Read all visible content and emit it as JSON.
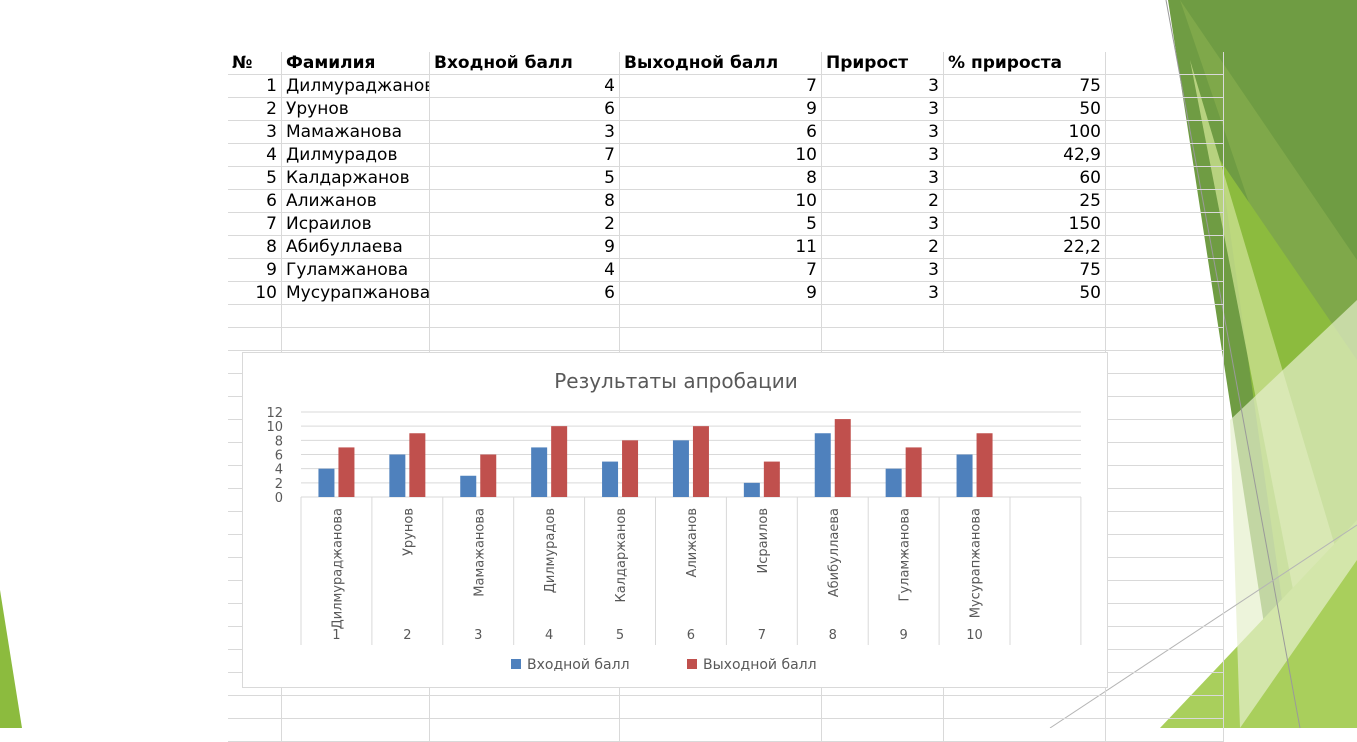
{
  "table": {
    "headers": [
      "№",
      "Фамилия",
      "Входной балл",
      "Выходной балл",
      "Прирост",
      "% прироста"
    ],
    "rows": [
      [
        "1",
        "Дилмураджанова",
        "4",
        "7",
        "3",
        "75"
      ],
      [
        "2",
        "Урунов",
        "6",
        "9",
        "3",
        "50"
      ],
      [
        "3",
        "Мамажанова",
        "3",
        "6",
        "3",
        "100"
      ],
      [
        "4",
        "Дилмурадов",
        "7",
        "10",
        "3",
        "42,9"
      ],
      [
        "5",
        "Калдаржанов",
        "5",
        "8",
        "3",
        "60"
      ],
      [
        "6",
        "Алижанов",
        "8",
        "10",
        "2",
        "25"
      ],
      [
        "7",
        "Исраилов",
        "2",
        "5",
        "3",
        "150"
      ],
      [
        "8",
        "Абибуллаева",
        "9",
        "11",
        "2",
        "22,2"
      ],
      [
        "9",
        "Гуламжанова",
        "4",
        "7",
        "3",
        "75"
      ],
      [
        "10",
        "Мусурапжанова",
        "6",
        "9",
        "3",
        "50"
      ]
    ]
  },
  "chart_data": {
    "type": "bar",
    "title": "Результаты апробации",
    "categories": [
      "Дилмураджанова",
      "Урунов",
      "Мамажанова",
      "Дилмурадов",
      "Калдаржанов",
      "Алижанов",
      "Исраилов",
      "Абибуллаева",
      "Гуламжанова",
      "Мусурапжанова"
    ],
    "numbers": [
      "1",
      "2",
      "3",
      "4",
      "5",
      "6",
      "7",
      "8",
      "9",
      "10"
    ],
    "series": [
      {
        "name": "Входной балл",
        "color": "#4f81bd",
        "values": [
          4,
          6,
          3,
          7,
          5,
          8,
          2,
          9,
          4,
          6
        ]
      },
      {
        "name": "Выходной балл",
        "color": "#c0504d",
        "values": [
          7,
          9,
          6,
          10,
          8,
          10,
          5,
          11,
          7,
          9
        ]
      }
    ],
    "yticks": [
      0,
      2,
      4,
      6,
      8,
      10,
      12
    ],
    "ylim": [
      0,
      12
    ],
    "legend_position": "bottom",
    "grid": true
  },
  "colors": {
    "green_dark": "#6f9c43",
    "green_mid": "#8cbb3e",
    "green_light": "#c9e08e",
    "green_pale": "#e6f0cc"
  }
}
